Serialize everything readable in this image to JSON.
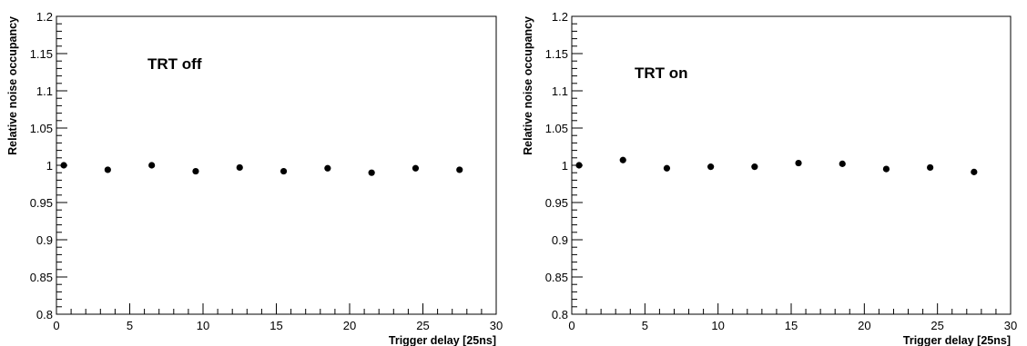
{
  "chart_data": [
    {
      "type": "scatter",
      "annotation": "TRT off",
      "xlabel": "Trigger delay [25ns]",
      "ylabel": "Relative noise occupancy",
      "xlim": [
        0,
        30
      ],
      "ylim": [
        0.8,
        1.2
      ],
      "x_ticks": [
        0,
        5,
        10,
        15,
        20,
        25,
        30
      ],
      "x_tick_labels": [
        "0",
        "5",
        "10",
        "15",
        "20",
        "25",
        "30"
      ],
      "y_ticks": [
        0.8,
        0.85,
        0.9,
        0.95,
        1.0,
        1.05,
        1.1,
        1.15,
        1.2
      ],
      "y_tick_labels": [
        "0.8",
        "0.85",
        "0.9",
        "0.95",
        "1",
        "1.05",
        "1.1",
        "1.15",
        "1.2"
      ],
      "grid": false,
      "series": [
        {
          "x": [
            0.5,
            3.5,
            6.5,
            9.5,
            12.5,
            15.5,
            18.5,
            21.5,
            24.5,
            27.5
          ],
          "y": [
            1.0,
            0.994,
            1.0,
            0.992,
            0.997,
            0.992,
            0.996,
            0.99,
            0.996,
            0.994
          ]
        }
      ]
    },
    {
      "type": "scatter",
      "annotation": "TRT on",
      "xlabel": "Trigger delay [25ns]",
      "ylabel": "Relative noise occupancy",
      "xlim": [
        0,
        30
      ],
      "ylim": [
        0.8,
        1.2
      ],
      "x_ticks": [
        0,
        5,
        10,
        15,
        20,
        25,
        30
      ],
      "x_tick_labels": [
        "0",
        "5",
        "10",
        "15",
        "20",
        "25",
        "30"
      ],
      "y_ticks": [
        0.8,
        0.85,
        0.9,
        0.95,
        1.0,
        1.05,
        1.1,
        1.15,
        1.2
      ],
      "y_tick_labels": [
        "0.8",
        "0.85",
        "0.9",
        "0.95",
        "1",
        "1.05",
        "1.1",
        "1.15",
        "1.2"
      ],
      "grid": false,
      "series": [
        {
          "x": [
            0.5,
            3.5,
            6.5,
            9.5,
            12.5,
            15.5,
            18.5,
            21.5,
            24.5,
            27.5
          ],
          "y": [
            1.0,
            1.007,
            0.996,
            0.998,
            0.998,
            1.003,
            1.002,
            0.995,
            0.997,
            0.991
          ]
        }
      ]
    }
  ]
}
